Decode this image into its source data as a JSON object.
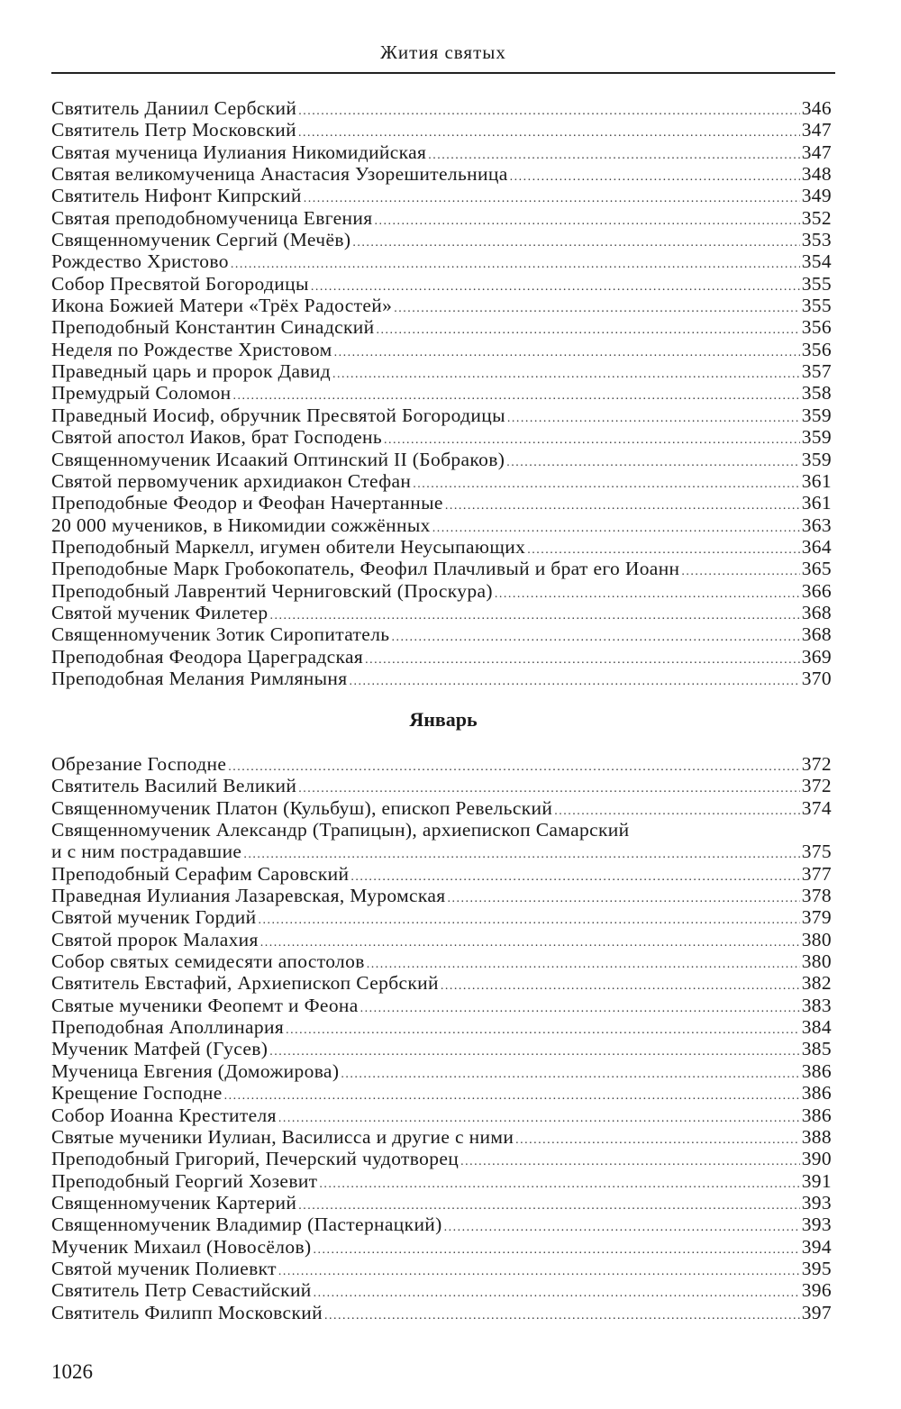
{
  "header": {
    "title": "Жития святых"
  },
  "section1": [
    {
      "title": "Святитель Даниил Сербский",
      "page": "346"
    },
    {
      "title": "Святитель Петр Московский",
      "page": "347"
    },
    {
      "title": "Святая мученица Иулиания Никомидийская",
      "page": "347"
    },
    {
      "title": "Святая великомученица Анастасия Узорешительница",
      "page": "348"
    },
    {
      "title": "Святитель Нифонт Кипрский",
      "page": "349"
    },
    {
      "title": "Святая преподобномученица Евгения",
      "page": "352"
    },
    {
      "title": "Священномученик Сергий (Мечёв)",
      "page": "353"
    },
    {
      "title": "Рождество Христово",
      "page": "354"
    },
    {
      "title": "Собор Пресвятой Богородицы",
      "page": "355"
    },
    {
      "title": "Икона Божией Матери «Трёх Радостей»",
      "page": "355"
    },
    {
      "title": "Преподобный Константин Синадский",
      "page": "356"
    },
    {
      "title": "Неделя по Рождестве Христовом",
      "page": "356"
    },
    {
      "title": "Праведный царь и пророк Давид",
      "page": "357"
    },
    {
      "title": "Премудрый Соломон",
      "page": "358"
    },
    {
      "title": "Праведный Иосиф, обручник Пресвятой Богородицы",
      "page": "359"
    },
    {
      "title": "Святой апостол Иаков, брат Господень",
      "page": "359"
    },
    {
      "title": "Священномученик Исаакий Оптинский II (Бобраков)",
      "page": "359"
    },
    {
      "title": "Святой первомученик архидиакон Стефан",
      "page": "361"
    },
    {
      "title": "Преподобные Феодор и Феофан Начертанные",
      "page": "361"
    },
    {
      "title": "20 000 мучеников, в Никомидии сожжённых",
      "page": "363"
    },
    {
      "title": "Преподобный Маркелл, игумен обители Неусыпающих",
      "page": "364"
    },
    {
      "title": "Преподобные Марк Гробокопатель, Феофил Плачливый и брат его Иоанн",
      "page": "365"
    },
    {
      "title": "Преподобный Лаврентий Черниговский (Проскура)",
      "page": "366"
    },
    {
      "title": "Святой мученик Филетер",
      "page": "368"
    },
    {
      "title": "Священномученик Зотик Сиропитатель",
      "page": "368"
    },
    {
      "title": "Преподобная Феодора Цареградская",
      "page": "369"
    },
    {
      "title": "Преподобная Мелания Римляныня",
      "page": "370"
    }
  ],
  "month_heading": "Январь",
  "section2_before": [
    {
      "title": "Обрезание Господне",
      "page": "372"
    },
    {
      "title": "Святитель Василий Великий",
      "page": "372"
    },
    {
      "title": "Священномученик Платон (Кульбуш), епископ Ревельский",
      "page": "374"
    }
  ],
  "wrapped_entry": {
    "line1": "Священномученик Александр (Трапицын), архиепископ Самарский",
    "line2": "и с ним пострадавшие",
    "page": "375"
  },
  "section2_after": [
    {
      "title": "Преподобный Серафим Саровский",
      "page": "377"
    },
    {
      "title": "Праведная Иулиания Лазаревская, Муромская",
      "page": "378"
    },
    {
      "title": "Святой мученик Гордий",
      "page": "379"
    },
    {
      "title": "Святой пророк Малахия",
      "page": "380"
    },
    {
      "title": "Собор святых семидесяти апостолов",
      "page": "380"
    },
    {
      "title": "Святитель Евстафий, Архиепископ Сербский",
      "page": "382"
    },
    {
      "title": "Святые мученики Феопемт и Феона",
      "page": "383"
    },
    {
      "title": "Преподобная Аполлинария",
      "page": "384"
    },
    {
      "title": "Мученик Матфей (Гусев)",
      "page": "385"
    },
    {
      "title": "Мученица Евгения (Доможирова)",
      "page": "386"
    },
    {
      "title": "Крещение Господне",
      "page": "386"
    },
    {
      "title": "Собор Иоанна Крестителя",
      "page": "386"
    },
    {
      "title": "Святые мученики Иулиан, Василисса и другие с ними",
      "page": "388"
    },
    {
      "title": "Преподобный Григорий, Печерский чудотворец",
      "page": "390"
    },
    {
      "title": "Преподобный Георгий Хозевит",
      "page": "391"
    },
    {
      "title": "Священномученик Картерий",
      "page": "393"
    },
    {
      "title": "Священномученик Владимир (Пастернацкий)",
      "page": "393"
    },
    {
      "title": "Мученик Михаил (Новосёлов)",
      "page": "394"
    },
    {
      "title": "Святой мученик Полиевкт",
      "page": "395"
    },
    {
      "title": "Святитель Петр Севастийский",
      "page": "396"
    },
    {
      "title": "Святитель Филипп Московский",
      "page": "397"
    }
  ],
  "footer": {
    "page_number": "1026"
  }
}
